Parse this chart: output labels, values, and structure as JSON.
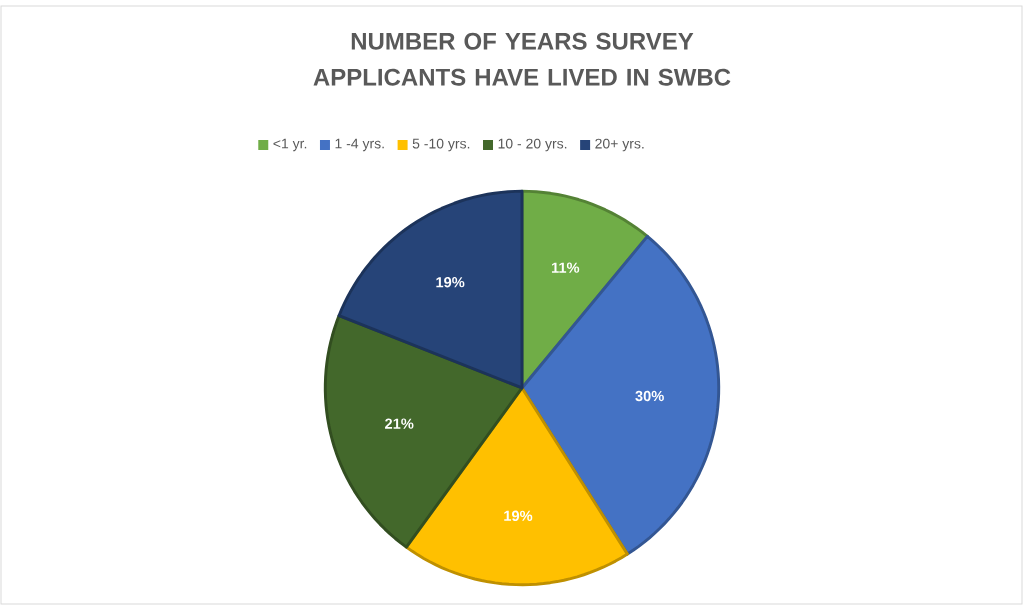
{
  "chart_data": {
    "type": "pie",
    "title": "NUMBER OF YEARS SURVEY APPLICANTS HAVE LIVED IN SWBC",
    "categories": [
      "<1 yr.",
      "1 -4 yrs.",
      "5 -10 yrs.",
      "10 - 20 yrs.",
      "20+ yrs."
    ],
    "values": [
      11,
      30,
      19,
      21,
      19
    ],
    "value_labels": [
      "11%",
      "30%",
      "19%",
      "21%",
      "19%"
    ],
    "colors": [
      "#70ad47",
      "#4472c4",
      "#ffc000",
      "#43682b",
      "#264478"
    ],
    "legend": "top"
  }
}
